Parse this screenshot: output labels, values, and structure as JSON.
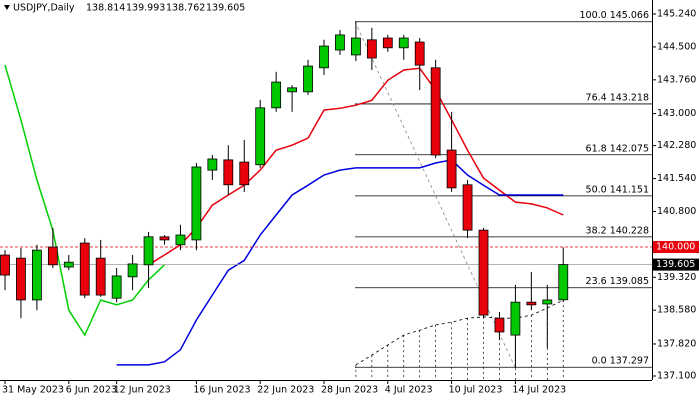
{
  "chart_data": {
    "type": "candlestick",
    "title": "USDJPY,Daily",
    "header_ohlc": [
      138.814,
      139.993,
      138.762,
      139.605
    ],
    "categories": [
      "31 May 2023",
      null,
      null,
      null,
      "6 Jun 2023",
      null,
      null,
      "12 Jun 2023",
      null,
      null,
      null,
      null,
      "16 Jun 2023",
      null,
      null,
      null,
      "22 Jun 2023",
      null,
      null,
      null,
      "28 Jun 2023",
      null,
      null,
      null,
      "4 Jul 2023",
      null,
      null,
      null,
      "10 Jul 2023",
      null,
      null,
      null,
      "14 Jul 2023",
      null,
      null,
      null
    ],
    "open": [
      139.82,
      139.75,
      138.81,
      140.0,
      139.55,
      140.09,
      139.75,
      138.85,
      139.33,
      139.6,
      140.23,
      140.05,
      140.16,
      141.73,
      141.96,
      141.91,
      141.85,
      143.13,
      143.49,
      143.49,
      144.03,
      144.43,
      144.32,
      144.66,
      144.7,
      144.48,
      144.61,
      144.03,
      142.18,
      141.4,
      140.38,
      138.4,
      138.02,
      138.76,
      138.72,
      138.814
    ],
    "high": [
      139.93,
      139.98,
      140.05,
      140.43,
      139.82,
      140.2,
      140.16,
      139.53,
      139.82,
      140.34,
      140.27,
      140.5,
      141.89,
      142.07,
      142.29,
      142.41,
      143.31,
      143.94,
      143.64,
      144.21,
      144.66,
      144.88,
      145.07,
      144.93,
      144.77,
      144.77,
      144.7,
      144.21,
      143.04,
      141.51,
      140.43,
      138.54,
      139.15,
      139.44,
      139.15,
      139.993
    ],
    "low": [
      139.03,
      138.4,
      138.58,
      139.53,
      139.48,
      138.85,
      138.88,
      138.76,
      139.03,
      139.08,
      140.05,
      139.93,
      139.93,
      141.51,
      141.17,
      141.24,
      141.78,
      143.04,
      143.04,
      143.42,
      143.87,
      144.32,
      144.18,
      143.98,
      144.39,
      144.21,
      143.53,
      142.0,
      141.24,
      140.2,
      138.4,
      137.91,
      137.28,
      138.58,
      137.73,
      138.762
    ],
    "close": [
      139.37,
      138.81,
      139.93,
      139.6,
      139.66,
      138.92,
      138.92,
      139.35,
      139.62,
      140.23,
      140.16,
      140.27,
      141.8,
      141.98,
      141.4,
      141.4,
      143.13,
      143.71,
      143.58,
      144.07,
      144.52,
      144.77,
      144.7,
      144.25,
      144.48,
      144.7,
      144.09,
      142.07,
      141.33,
      140.38,
      138.47,
      138.09,
      138.76,
      138.7,
      138.81,
      139.605
    ],
    "up_color": "#00c800",
    "down_color": "#e8000b",
    "overlays": [
      {
        "color": "#e8000b",
        "values": [
          null,
          null,
          null,
          null,
          null,
          null,
          null,
          null,
          null,
          139.6,
          139.82,
          140.05,
          140.43,
          140.94,
          141.17,
          141.39,
          141.73,
          142.18,
          142.29,
          142.45,
          143.08,
          143.12,
          143.19,
          143.3,
          143.75,
          143.98,
          144.02,
          143.53,
          142.86,
          142.18,
          141.55,
          141.28,
          141.01,
          140.97,
          140.88,
          140.72
        ]
      },
      {
        "color": "#0000e0",
        "values": [
          null,
          null,
          null,
          null,
          null,
          null,
          null,
          137.35,
          137.35,
          137.35,
          137.42,
          137.69,
          138.36,
          138.92,
          139.48,
          139.7,
          140.27,
          140.72,
          141.17,
          141.39,
          141.62,
          141.73,
          141.78,
          141.78,
          141.78,
          141.78,
          141.78,
          141.89,
          141.96,
          141.62,
          141.39,
          141.17,
          141.17,
          141.17,
          141.17,
          141.17
        ]
      },
      {
        "color": "#00d000",
        "values": [
          144.09,
          142.86,
          141.51,
          140.38,
          138.58,
          138.02,
          138.81,
          138.7,
          138.81,
          139.26,
          139.6,
          null,
          null,
          null,
          null,
          null,
          null,
          null,
          null,
          null,
          null,
          null,
          null,
          null,
          null,
          null,
          null,
          null,
          null,
          null,
          null,
          null,
          null,
          null,
          null,
          null
        ]
      },
      {
        "color": "#000000",
        "dash": true,
        "hatch": true,
        "values": [
          null,
          null,
          null,
          null,
          null,
          null,
          null,
          null,
          null,
          null,
          null,
          null,
          null,
          null,
          null,
          null,
          null,
          null,
          null,
          null,
          null,
          null,
          137.35,
          137.57,
          137.8,
          138.02,
          138.13,
          138.25,
          138.31,
          138.4,
          138.43,
          138.4,
          138.4,
          138.47,
          138.63,
          138.81
        ]
      }
    ],
    "fib_levels": [
      {
        "value": 145.066,
        "label": "100.0 145.066"
      },
      {
        "value": 143.218,
        "label": "76.4 143.218"
      },
      {
        "value": 142.075,
        "label": "61.8 142.075"
      },
      {
        "value": 141.151,
        "label": "50.0 141.151"
      },
      {
        "value": 140.228,
        "label": "38.2 140.228"
      },
      {
        "value": 139.085,
        "label": "23.6 139.085"
      },
      {
        "value": 137.297,
        "label": "0.0 137.297"
      }
    ],
    "alert_line": {
      "value": 140,
      "label": "140.000",
      "color": "#e8000b"
    },
    "price_line": 139.605,
    "ylim": [
      137.01,
      145.555
    ],
    "yticks": [
      {
        "value": 145.24,
        "label": "145.240"
      },
      {
        "value": 144.5,
        "label": "144.500"
      },
      {
        "value": 143.76,
        "label": "143.760"
      },
      {
        "value": 143,
        "label": "143.000"
      },
      {
        "value": 142.28,
        "label": "142.280"
      },
      {
        "value": 141.54,
        "label": "141.540"
      },
      {
        "value": 140.8,
        "label": "140.800"
      },
      {
        "value": 139.32,
        "label": "139.320"
      },
      {
        "value": 138.58,
        "label": "138.580"
      },
      {
        "value": 137.82,
        "label": "137.820"
      },
      {
        "value": 137.1,
        "label": "137.100"
      }
    ],
    "grid": false
  }
}
